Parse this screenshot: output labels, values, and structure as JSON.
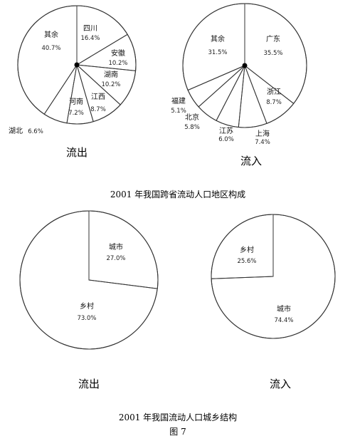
{
  "chart_data": [
    {
      "type": "pie",
      "title": "流出",
      "slices": [
        {
          "label": "四川",
          "value": 16.4,
          "value_text": "16.4%"
        },
        {
          "label": "安徽",
          "value": 10.2,
          "value_text": "10.2%"
        },
        {
          "label": "湖南",
          "value": 10.2,
          "value_text": "10.2%"
        },
        {
          "label": "江西",
          "value": 8.7,
          "value_text": "8.7%"
        },
        {
          "label": "河南",
          "value": 7.2,
          "value_text": "7.2%"
        },
        {
          "label": "湖北",
          "value": 6.6,
          "value_text": "6.6%"
        },
        {
          "label": "其余",
          "value": 40.7,
          "value_text": "40.7%"
        }
      ]
    },
    {
      "type": "pie",
      "title": "流入",
      "slices": [
        {
          "label": "广东",
          "value": 35.5,
          "value_text": "35.5%"
        },
        {
          "label": "浙江",
          "value": 8.7,
          "value_text": "8.7%"
        },
        {
          "label": "上海",
          "value": 7.4,
          "value_text": "7.4%"
        },
        {
          "label": "江苏",
          "value": 6.0,
          "value_text": "6.0%"
        },
        {
          "label": "北京",
          "value": 5.8,
          "value_text": "5.8%"
        },
        {
          "label": "福建",
          "value": 5.1,
          "value_text": "5.1%"
        },
        {
          "label": "其余",
          "value": 31.5,
          "value_text": "31.5%"
        }
      ]
    },
    {
      "type": "pie",
      "title": "流出",
      "slices": [
        {
          "label": "城市",
          "value": 27.0,
          "value_text": "27.0%"
        },
        {
          "label": "乡村",
          "value": 73.0,
          "value_text": "73.0%"
        }
      ]
    },
    {
      "type": "pie",
      "title": "流入",
      "slices": [
        {
          "label": "乡村",
          "value": 25.6,
          "value_text": "25.6%"
        },
        {
          "label": "城市",
          "value": 74.4,
          "value_text": "74.4%"
        }
      ]
    }
  ],
  "captions": {
    "region": "2001 年我国跨省流动人口地区构成",
    "urban_rural": "2001 年我国流动人口城乡结构",
    "figure": "图 7"
  }
}
